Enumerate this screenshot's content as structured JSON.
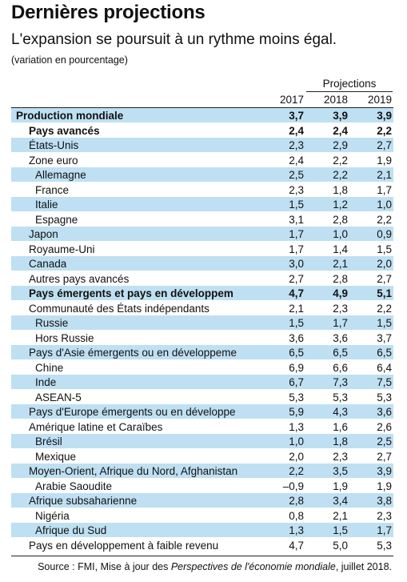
{
  "header": {
    "title": "Dernières projections",
    "subtitle": "L'expansion se poursuit à un rythme moins égal.",
    "unit_note": "(variation en pourcentage)"
  },
  "table": {
    "projections_label": "Projections",
    "years": [
      "2017",
      "2018",
      "2019"
    ],
    "rows": [
      {
        "label": "Production mondiale",
        "v": [
          "3,7",
          "3,9",
          "3,9"
        ],
        "bold": true,
        "indent": 0,
        "shaded": true
      },
      {
        "label": "Pays avancés",
        "v": [
          "2,4",
          "2,4",
          "2,2"
        ],
        "bold": true,
        "indent": 1,
        "shaded": false
      },
      {
        "label": "États-Unis",
        "v": [
          "2,3",
          "2,9",
          "2,7"
        ],
        "bold": false,
        "indent": 1,
        "shaded": true
      },
      {
        "label": "Zone euro",
        "v": [
          "2,4",
          "2,2",
          "1,9"
        ],
        "bold": false,
        "indent": 1,
        "shaded": false
      },
      {
        "label": "Allemagne",
        "v": [
          "2,5",
          "2,2",
          "2,1"
        ],
        "bold": false,
        "indent": 2,
        "shaded": true
      },
      {
        "label": "France",
        "v": [
          "2,3",
          "1,8",
          "1,7"
        ],
        "bold": false,
        "indent": 2,
        "shaded": false
      },
      {
        "label": "Italie",
        "v": [
          "1,5",
          "1,2",
          "1,0"
        ],
        "bold": false,
        "indent": 2,
        "shaded": true
      },
      {
        "label": "Espagne",
        "v": [
          "3,1",
          "2,8",
          "2,2"
        ],
        "bold": false,
        "indent": 2,
        "shaded": false
      },
      {
        "label": "Japon",
        "v": [
          "1,7",
          "1,0",
          "0,9"
        ],
        "bold": false,
        "indent": 1,
        "shaded": true
      },
      {
        "label": "Royaume-Uni",
        "v": [
          "1,7",
          "1,4",
          "1,5"
        ],
        "bold": false,
        "indent": 1,
        "shaded": false
      },
      {
        "label": "Canada",
        "v": [
          "3,0",
          "2,1",
          "2,0"
        ],
        "bold": false,
        "indent": 1,
        "shaded": true
      },
      {
        "label": "Autres pays avancés",
        "v": [
          "2,7",
          "2,8",
          "2,7"
        ],
        "bold": false,
        "indent": 1,
        "shaded": false
      },
      {
        "label": "Pays émergents et pays en développem",
        "v": [
          "4,7",
          "4,9",
          "5,1"
        ],
        "bold": true,
        "indent": 1,
        "shaded": true
      },
      {
        "label": "Communauté des États indépendants",
        "v": [
          "2,1",
          "2,3",
          "2,2"
        ],
        "bold": false,
        "indent": 1,
        "shaded": false
      },
      {
        "label": "Russie",
        "v": [
          "1,5",
          "1,7",
          "1,5"
        ],
        "bold": false,
        "indent": 2,
        "shaded": true
      },
      {
        "label": "Hors Russie",
        "v": [
          "3,6",
          "3,6",
          "3,7"
        ],
        "bold": false,
        "indent": 2,
        "shaded": false
      },
      {
        "label": "Pays d'Asie émergents ou en développeme",
        "v": [
          "6,5",
          "6,5",
          "6,5"
        ],
        "bold": false,
        "indent": 1,
        "shaded": true
      },
      {
        "label": "Chine",
        "v": [
          "6,9",
          "6,6",
          "6,4"
        ],
        "bold": false,
        "indent": 2,
        "shaded": false
      },
      {
        "label": "Inde",
        "v": [
          "6,7",
          "7,3",
          "7,5"
        ],
        "bold": false,
        "indent": 2,
        "shaded": true
      },
      {
        "label": "ASEAN-5",
        "v": [
          "5,3",
          "5,3",
          "5,3"
        ],
        "bold": false,
        "indent": 2,
        "shaded": false
      },
      {
        "label": "Pays d'Europe émergents ou en développe",
        "v": [
          "5,9",
          "4,3",
          "3,6"
        ],
        "bold": false,
        "indent": 1,
        "shaded": true
      },
      {
        "label": "Amérique latine et Caraïbes",
        "v": [
          "1,3",
          "1,6",
          "2,6"
        ],
        "bold": false,
        "indent": 1,
        "shaded": false
      },
      {
        "label": "Brésil",
        "v": [
          "1,0",
          "1,8",
          "2,5"
        ],
        "bold": false,
        "indent": 2,
        "shaded": true
      },
      {
        "label": "Mexique",
        "v": [
          "2,0",
          "2,3",
          "2,7"
        ],
        "bold": false,
        "indent": 2,
        "shaded": false
      },
      {
        "label": "Moyen-Orient, Afrique du Nord, Afghanistan",
        "v": [
          "2,2",
          "3,5",
          "3,9"
        ],
        "bold": false,
        "indent": 1,
        "shaded": true
      },
      {
        "label": "Arabie Saoudite",
        "v": [
          "–0,9",
          "1,9",
          "1,9"
        ],
        "bold": false,
        "indent": 2,
        "shaded": false
      },
      {
        "label": "Afrique subsaharienne",
        "v": [
          "2,8",
          "3,4",
          "3,8"
        ],
        "bold": false,
        "indent": 1,
        "shaded": true
      },
      {
        "label": "Nigéria",
        "v": [
          "0,8",
          "2,1",
          "2,3"
        ],
        "bold": false,
        "indent": 2,
        "shaded": false
      },
      {
        "label": "Afrique du Sud",
        "v": [
          "1,3",
          "1,5",
          "1,7"
        ],
        "bold": false,
        "indent": 2,
        "shaded": true
      },
      {
        "label": "Pays en développement à faible revenu",
        "v": [
          "4,7",
          "5,0",
          "5,3"
        ],
        "bold": false,
        "indent": 1,
        "shaded": false
      }
    ]
  },
  "source": {
    "prefix": "Source : FMI, Mise à jour des ",
    "publication": "Perspectives de l'économie mondiale",
    "suffix": ", juillet 2018."
  },
  "colors": {
    "row_shade": "#bfe0f2"
  }
}
